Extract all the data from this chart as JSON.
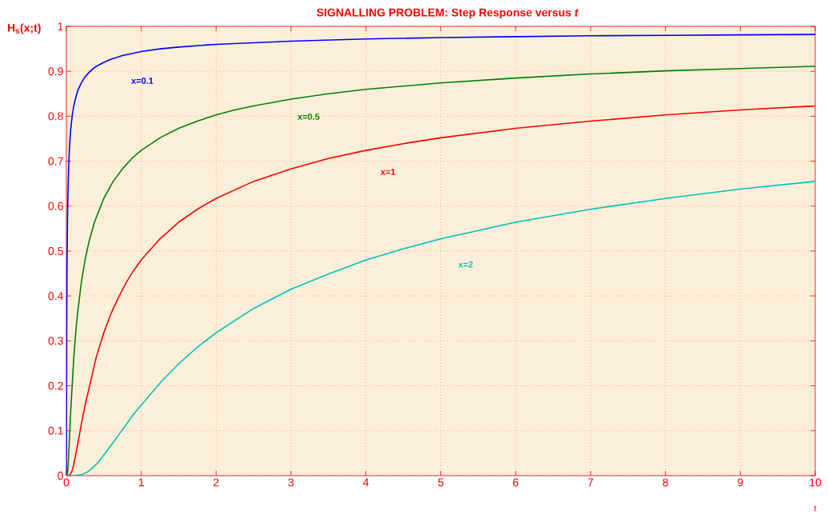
{
  "chart_data": {
    "type": "line",
    "title": "SIGNALLING PROBLEM: Step Response versus *t*",
    "xlabel": "t",
    "ylabel": "H$_{s}$(x;t)",
    "xlim": [
      0,
      10
    ],
    "ylim": [
      0,
      1
    ],
    "xticks": [
      0,
      1,
      2,
      3,
      4,
      5,
      6,
      7,
      8,
      9,
      10
    ],
    "yticks": [
      0,
      0.1,
      0.2,
      0.3,
      0.4,
      0.5,
      0.6,
      0.7,
      0.8,
      0.9,
      1
    ],
    "grid": true,
    "marker": "none",
    "line_style": "solid",
    "series": [
      {
        "name": "x=0.1",
        "color": "#0000ff",
        "x": [
          0,
          0.0002,
          0.0005,
          0.001,
          0.0015,
          0.002,
          0.003,
          0.004,
          0.005,
          0.006,
          0.008,
          0.01,
          0.015,
          0.02,
          0.03,
          0.04,
          0.05,
          0.06,
          0.07,
          0.08,
          0.09,
          0.1,
          0.12,
          0.14,
          0.16,
          0.2,
          0.25,
          0.3,
          0.35,
          0.4,
          0.5,
          0.6,
          0.75,
          1,
          1.25,
          1.5,
          2,
          3,
          4,
          5,
          6,
          7,
          8,
          9,
          10
        ],
        "values": [
          0,
          0,
          0.002,
          0.025,
          0.068,
          0.114,
          0.192,
          0.264,
          0.318,
          0.362,
          0.43,
          0.48,
          0.564,
          0.617,
          0.683,
          0.724,
          0.752,
          0.773,
          0.789,
          0.803,
          0.814,
          0.823,
          0.838,
          0.85,
          0.86,
          0.874,
          0.888,
          0.897,
          0.905,
          0.911,
          0.92,
          0.927,
          0.935,
          0.944,
          0.95,
          0.954,
          0.96,
          0.967,
          0.972,
          0.975,
          0.977,
          0.979,
          0.98,
          0.981,
          0.982
        ]
      },
      {
        "name": "x=0.5",
        "color": "#008000",
        "x": [
          0,
          0.005,
          0.0125,
          0.02,
          0.025,
          0.04,
          0.05,
          0.06,
          0.075,
          0.1,
          0.125,
          0.15,
          0.2,
          0.25,
          0.3,
          0.375,
          0.5,
          0.625,
          0.75,
          0.875,
          1,
          1.25,
          1.5,
          1.75,
          2,
          2.25,
          2.5,
          3,
          3.5,
          4,
          5,
          6,
          7,
          8,
          9,
          10
        ],
        "values": [
          0,
          0,
          0.002,
          0.013,
          0.025,
          0.078,
          0.114,
          0.15,
          0.192,
          0.264,
          0.318,
          0.362,
          0.43,
          0.48,
          0.519,
          0.564,
          0.617,
          0.655,
          0.683,
          0.706,
          0.724,
          0.752,
          0.773,
          0.789,
          0.803,
          0.814,
          0.823,
          0.838,
          0.85,
          0.86,
          0.874,
          0.885,
          0.894,
          0.901,
          0.906,
          0.911
        ]
      },
      {
        "name": "x=1",
        "color": "#ff0000",
        "x": [
          0,
          0.02,
          0.05,
          0.075,
          0.1,
          0.15,
          0.2,
          0.25,
          0.3,
          0.4,
          0.5,
          0.6,
          0.7,
          0.8,
          0.9,
          1,
          1.25,
          1.5,
          1.75,
          2,
          2.5,
          3,
          3.5,
          4,
          4.5,
          5,
          6,
          7,
          8,
          9,
          10
        ],
        "values": [
          0,
          0,
          0.002,
          0.01,
          0.025,
          0.068,
          0.114,
          0.157,
          0.192,
          0.264,
          0.318,
          0.362,
          0.398,
          0.43,
          0.457,
          0.48,
          0.527,
          0.564,
          0.593,
          0.617,
          0.655,
          0.683,
          0.706,
          0.724,
          0.739,
          0.752,
          0.773,
          0.789,
          0.803,
          0.814,
          0.823
        ]
      },
      {
        "name": "x=2",
        "color": "#00bfbf",
        "x": [
          0,
          0.1,
          0.2,
          0.3,
          0.4,
          0.5,
          0.6,
          0.7,
          0.8,
          0.9,
          1,
          1.25,
          1.5,
          1.75,
          2,
          2.5,
          3,
          3.5,
          4,
          4.5,
          5,
          6,
          7,
          8,
          9,
          10
        ],
        "values": [
          0,
          0,
          0.002,
          0.01,
          0.025,
          0.046,
          0.068,
          0.091,
          0.114,
          0.137,
          0.157,
          0.206,
          0.249,
          0.286,
          0.318,
          0.372,
          0.415,
          0.449,
          0.48,
          0.505,
          0.527,
          0.564,
          0.593,
          0.617,
          0.638,
          0.655
        ]
      }
    ]
  }
}
